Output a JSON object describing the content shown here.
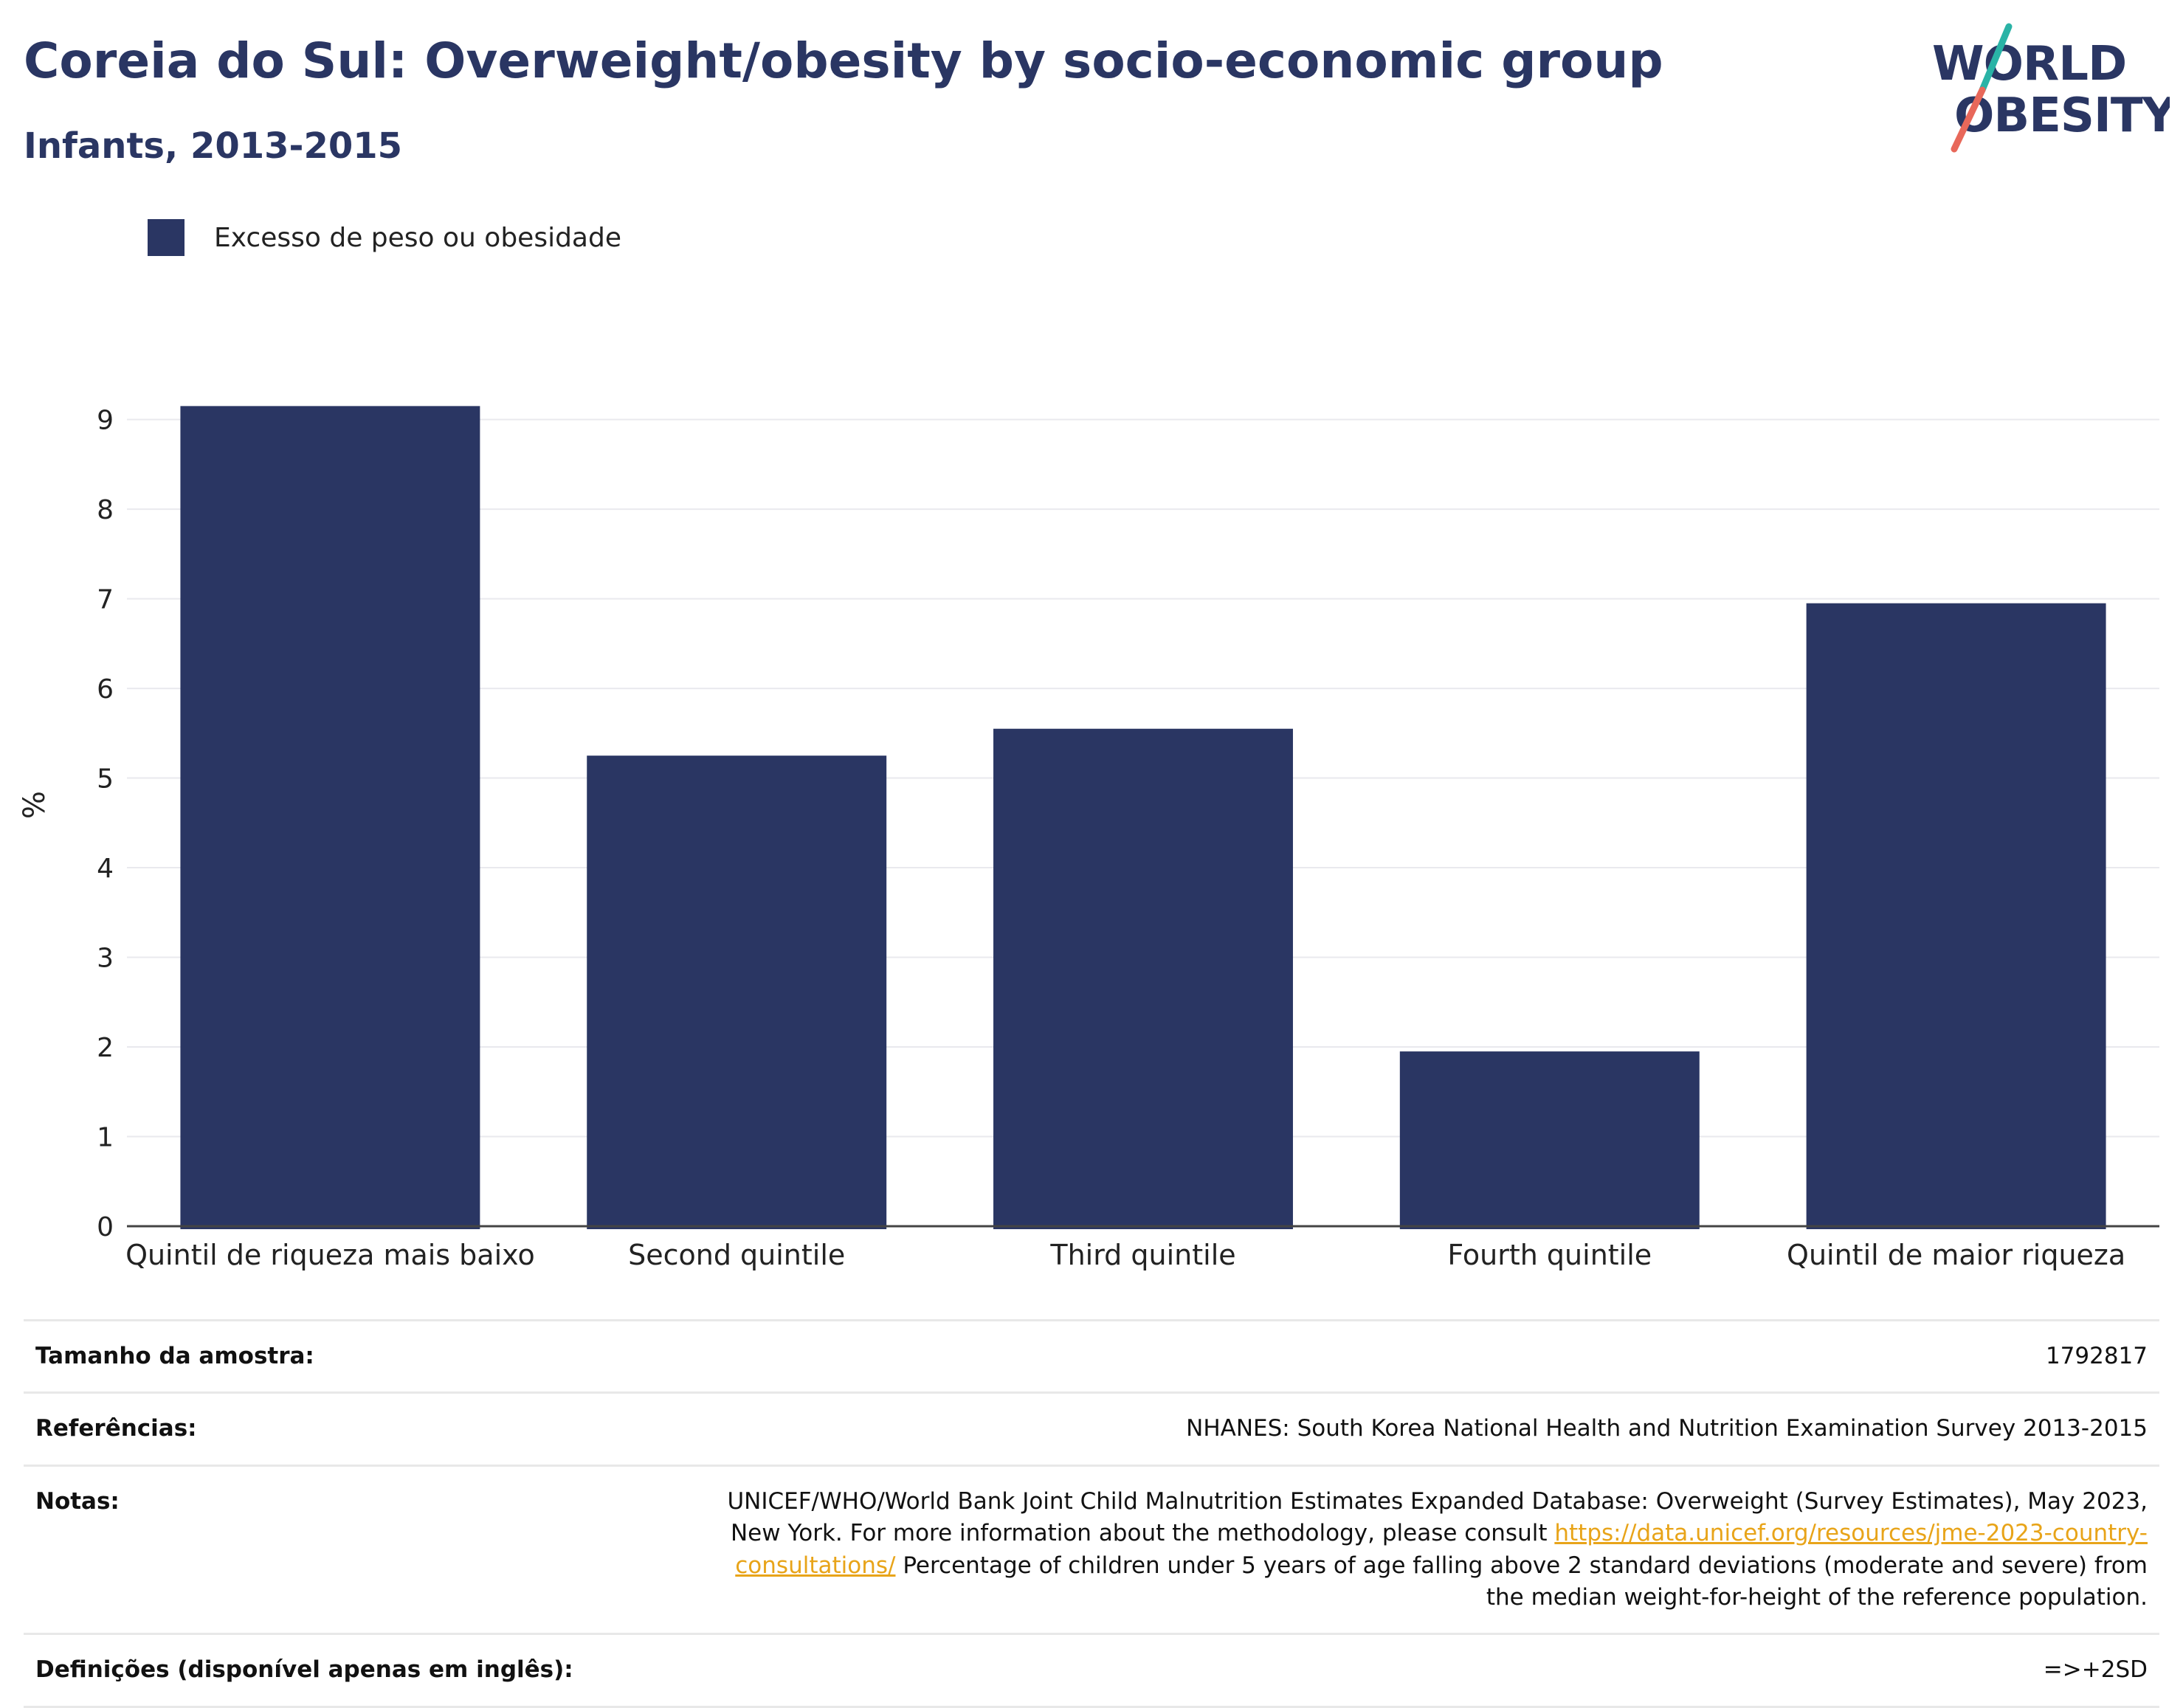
{
  "header": {
    "title": "Coreia do Sul: Overweight/obesity by socio-economic group",
    "subtitle": "Infants, 2013-2015"
  },
  "logo": {
    "line1": "WORLD",
    "line2": "OBESITY",
    "colors": {
      "text": "#2a3663",
      "slash_top": "#2ab3a6",
      "slash_bottom": "#e8685a"
    }
  },
  "legend": {
    "items": [
      {
        "label": "Excesso de peso ou obesidade",
        "color": "#2a3663"
      }
    ]
  },
  "chart_data": {
    "type": "bar",
    "categories": [
      "Quintil de riqueza mais baixo",
      "Second quintile",
      "Third quintile",
      "Fourth quintile",
      "Quintil de maior riqueza"
    ],
    "series": [
      {
        "name": "Excesso de peso ou obesidade",
        "values": [
          9.15,
          5.25,
          5.55,
          1.95,
          6.95
        ],
        "color": "#2a3663"
      }
    ],
    "ylabel": "%",
    "xlabel": "",
    "ylim": [
      0,
      9.4
    ],
    "yticks": [
      0,
      1,
      2,
      3,
      4,
      5,
      6,
      7,
      8,
      9
    ],
    "grid": true,
    "legend_position": "top-left"
  },
  "info": {
    "sample_size": {
      "label": "Tamanho da amostra:",
      "value": "1792817"
    },
    "references": {
      "label": "Referências:",
      "value": "NHANES: South Korea National Health and Nutrition Examination Survey 2013-2015"
    },
    "notes": {
      "label": "Notas:",
      "text1": "UNICEF/WHO/World Bank Joint Child Malnutrition Estimates Expanded Database: Overweight (Survey Estimates), May 2023, New York. For more information about the methodology, please consult ",
      "link": "https://data.unicef.org/resources/jme-2023-country-consultations/",
      "text2": " Percentage of children under 5 years of age falling above 2 standard deviations (moderate and severe) from the median weight-for-height of the reference population."
    },
    "definitions": {
      "label": "Definições (disponível apenas em inglês):",
      "value": "=>+2SD"
    }
  }
}
